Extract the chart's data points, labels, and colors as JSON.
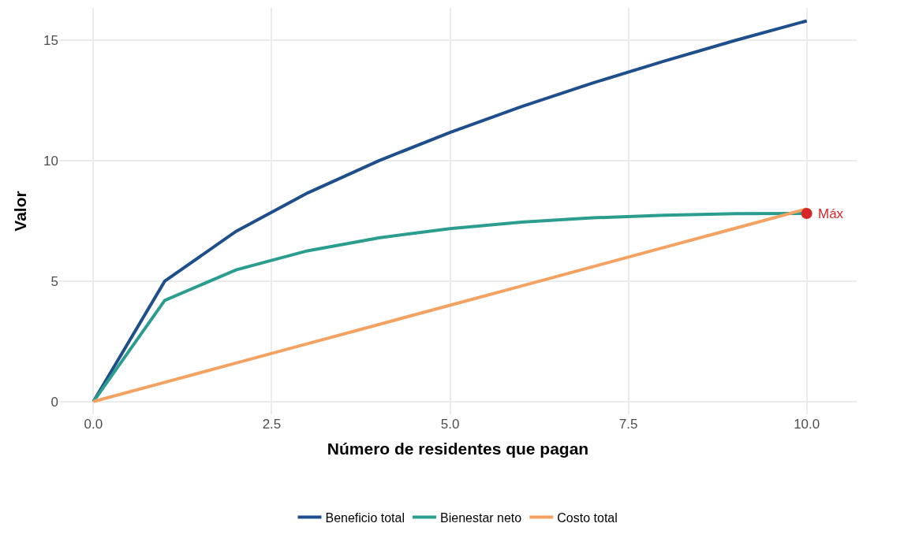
{
  "chart_data": {
    "type": "line",
    "xlabel": "Número de residentes que pagan",
    "ylabel": "Valor",
    "x": [
      0,
      1,
      2,
      3,
      4,
      5,
      6,
      7,
      8,
      9,
      10
    ],
    "series": [
      {
        "name": "Beneficio total",
        "color": "#1f4e8c",
        "values": [
          0,
          5,
          7.07,
          8.66,
          10,
          11.18,
          12.25,
          13.23,
          14.14,
          15,
          15.81
        ]
      },
      {
        "name": "Bienestar neto",
        "color": "#2a9d8f",
        "values": [
          0,
          4.2,
          5.47,
          6.26,
          6.8,
          7.18,
          7.45,
          7.63,
          7.74,
          7.8,
          7.81
        ]
      },
      {
        "name": "Costo total",
        "color": "#f4a261",
        "values": [
          0,
          0.8,
          1.6,
          2.4,
          3.2,
          4,
          4.8,
          5.6,
          6.4,
          7.2,
          8
        ]
      },
      {
        "type": "scatter",
        "color": "#d62828",
        "x": [
          10
        ],
        "values": [
          7.81
        ],
        "marker": "circle"
      }
    ],
    "annotations": [
      {
        "text": "Máx",
        "x": 10,
        "y": 7.81
      }
    ],
    "xlim": [
      -0.48,
      10.7
    ],
    "ylim": [
      -0.53,
      16.35
    ],
    "xticks": [
      {
        "value": 0,
        "label": "0.0"
      },
      {
        "value": 2.5,
        "label": "2.5"
      },
      {
        "value": 5,
        "label": "5.0"
      },
      {
        "value": 7.5,
        "label": "7.5"
      },
      {
        "value": 10,
        "label": "10.0"
      }
    ],
    "yticks": [
      0,
      5,
      10,
      15
    ],
    "grid": true,
    "legend": "bottom",
    "marker": "none",
    "line_style": "solid"
  }
}
